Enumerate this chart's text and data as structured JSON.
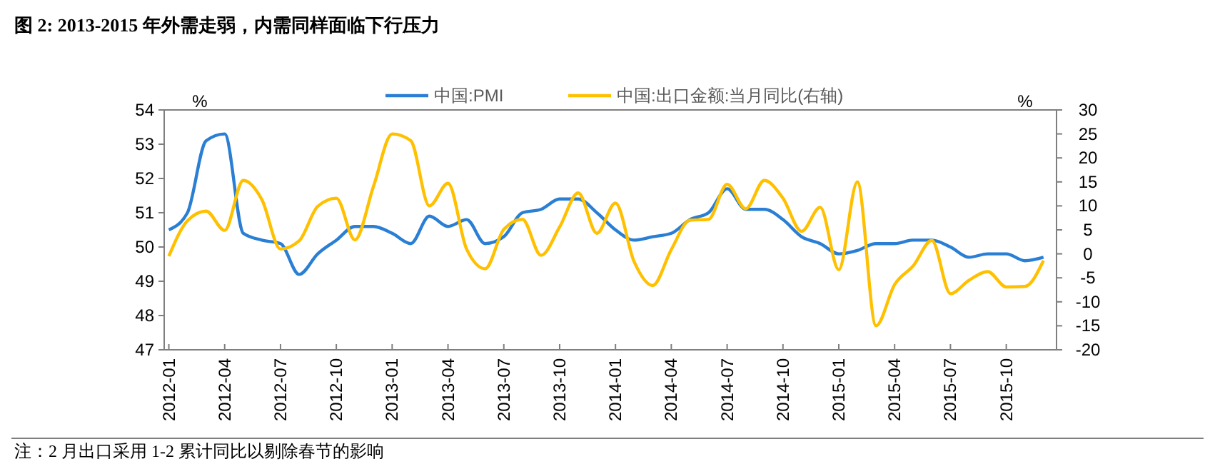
{
  "chart_data": {
    "type": "line",
    "title": "图 2: 2013-2015 年外需走弱，内需同样面临下行压力",
    "categories": [
      "2012-01",
      null,
      null,
      "2012-04",
      null,
      null,
      "2012-07",
      null,
      null,
      "2012-10",
      null,
      null,
      "2013-01",
      null,
      null,
      "2013-04",
      null,
      null,
      "2013-07",
      null,
      null,
      "2013-10",
      null,
      null,
      "2014-01",
      null,
      null,
      "2014-04",
      null,
      null,
      "2014-07",
      null,
      null,
      "2014-10",
      null,
      null,
      "2015-01",
      null,
      null,
      "2015-04",
      null,
      null,
      "2015-07",
      null,
      null,
      "2015-10",
      null,
      null
    ],
    "series": [
      {
        "name": "中国:PMI",
        "color": "#2a7fd4",
        "values": [
          50.5,
          51.0,
          53.1,
          53.3,
          50.4,
          50.2,
          50.1,
          49.2,
          49.8,
          50.2,
          50.6,
          50.6,
          50.4,
          50.1,
          50.9,
          50.6,
          50.8,
          50.1,
          50.3,
          51.0,
          51.1,
          51.4,
          51.4,
          51.0,
          50.5,
          50.2,
          50.3,
          50.4,
          50.8,
          51.0,
          51.7,
          51.1,
          51.1,
          50.8,
          50.3,
          50.1,
          49.8,
          49.9,
          50.1,
          50.1,
          50.2,
          50.2,
          50.0,
          49.7,
          49.8,
          49.8,
          49.6,
          49.7
        ]
      },
      {
        "name": "中国:出口金额:当月同比(右轴)",
        "color": "#ffc000",
        "axis": "y2",
        "values": [
          -0.5,
          6.9,
          8.9,
          4.9,
          15.3,
          11.3,
          1.0,
          2.7,
          9.9,
          11.6,
          2.9,
          14.1,
          25.0,
          23.6,
          10.0,
          14.7,
          1.0,
          -3.1,
          5.1,
          7.2,
          -0.3,
          5.6,
          12.7,
          4.3,
          10.6,
          -1.6,
          -6.6,
          0.9,
          7.0,
          7.2,
          14.5,
          9.4,
          15.3,
          11.6,
          4.7,
          9.7,
          -3.3,
          15.0,
          -15.0,
          -6.4,
          -2.5,
          2.8,
          -8.3,
          -5.5,
          -3.7,
          -6.9,
          -6.8,
          -1.4
        ]
      }
    ],
    "ylabel": "%",
    "y2label": "%",
    "ylim": [
      47,
      54
    ],
    "yticks": [
      47,
      48,
      49,
      50,
      51,
      52,
      53,
      54
    ],
    "y2lim": [
      -20,
      30
    ],
    "y2ticks": [
      -20,
      -15,
      -10,
      -5,
      0,
      5,
      10,
      15,
      20,
      25,
      30
    ],
    "legend": "top",
    "grid": false,
    "annotations": [
      "注：2 月出口采用 1-2 累计同比以剔除春节的影响"
    ]
  }
}
